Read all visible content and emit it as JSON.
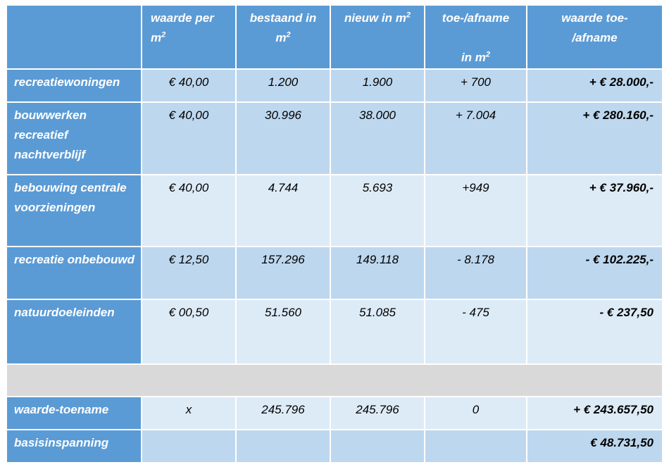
{
  "header": {
    "col0": "",
    "col1a": "waarde   per",
    "col1b": "m",
    "col2a": "bestaand in",
    "col2b": "m",
    "col3a": "nieuw in m",
    "col4a": "toe-/afname",
    "col4b": "in m",
    "col5a": "waarde toe-",
    "col5b": "/afname",
    "sup": "2"
  },
  "rows": [
    {
      "label": "recreatiewoningen",
      "waarde": "€ 40,00",
      "bestaand": "1.200",
      "nieuw": "1.900",
      "delta": "+ 700",
      "waarde_delta": "+ € 28.000,-"
    },
    {
      "label": "bouwwerken recreatief nachtverblijf",
      "waarde": "€ 40,00",
      "bestaand": "30.996",
      "nieuw": "38.000",
      "delta": "+ 7.004",
      "waarde_delta": "+ € 280.160,-"
    },
    {
      "label": "bebouwing centrale voorzieningen",
      "waarde": "€ 40,00",
      "bestaand": "4.744",
      "nieuw": "5.693",
      "delta": "+949",
      "waarde_delta": "+ € 37.960,-"
    },
    {
      "label": "recreatie onbebouwd",
      "waarde": "€ 12,50",
      "bestaand": "157.296",
      "nieuw": "149.118",
      "delta": "- 8.178",
      "waarde_delta": "- € 102.225,-"
    },
    {
      "label": "natuurdoeleinden",
      "waarde": "€ 00,50",
      "bestaand": "51.560",
      "nieuw": "51.085",
      "delta": "- 475",
      "waarde_delta": "- € 237,50"
    }
  ],
  "totals": [
    {
      "label": "waarde-toename",
      "waarde": "x",
      "bestaand": "245.796",
      "nieuw": "245.796",
      "delta": "0",
      "waarde_delta": "+ € 243.657,50"
    },
    {
      "label": "basisinspanning",
      "waarde": "",
      "bestaand": "",
      "nieuw": "",
      "delta": "",
      "waarde_delta": "€ 48.731,50"
    }
  ],
  "colors": {
    "header": "#5b9bd5",
    "dark": "#bdd7ee",
    "light": "#ddebf7",
    "spacer": "#d9d9d9"
  }
}
